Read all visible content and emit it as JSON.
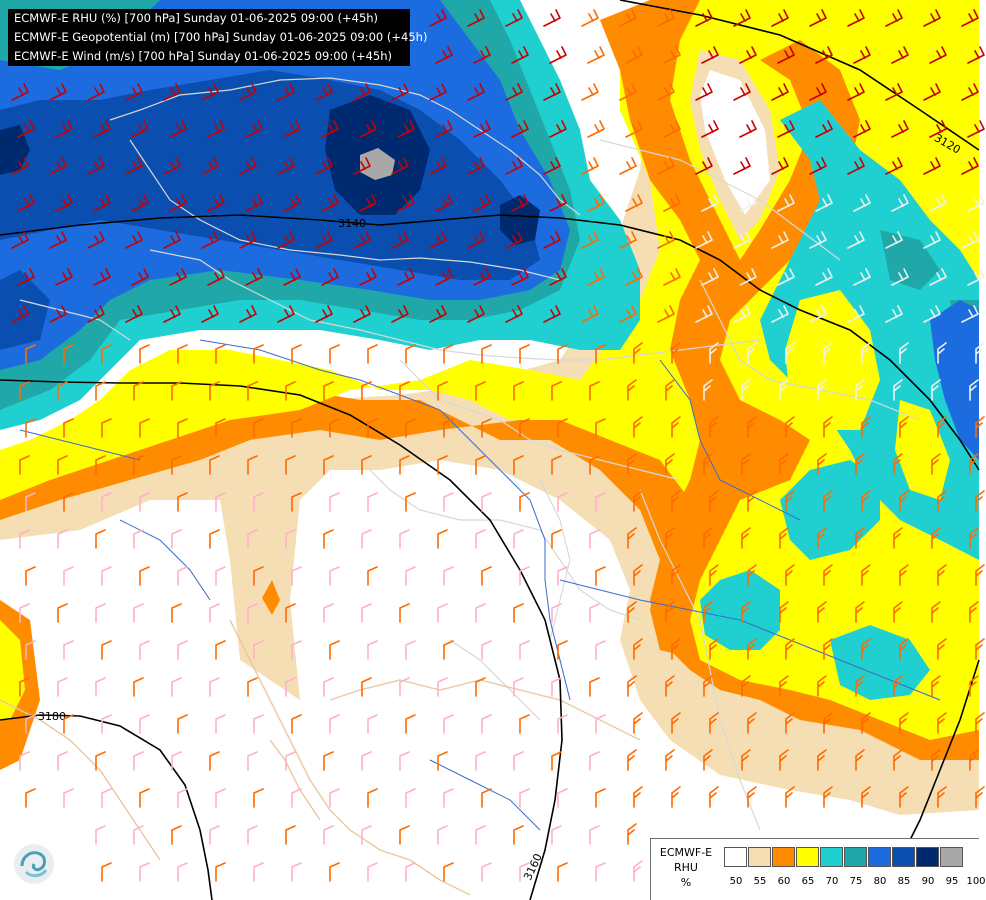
{
  "titles": [
    "ECMWF-E RHU (%) [700 hPa] Sunday 01-06-2025 09:00 (+45h)",
    "ECMWF-E Geopotential (m) [700 hPa] Sunday 01-06-2025 09:00 (+45h)",
    "ECMWF-E Wind (m/s) [700 hPa] Sunday 01-06-2025 09:00 (+45h)"
  ],
  "contours": {
    "c3120": "3120",
    "c3140": "3140",
    "c3160": "3160",
    "c3180": "3180"
  },
  "legend": {
    "model": "ECMWF-E",
    "variable": "RHU",
    "unit": "%",
    "ticks": [
      "50",
      "55",
      "60",
      "65",
      "70",
      "75",
      "80",
      "85",
      "90",
      "95",
      "100"
    ],
    "colors": [
      "#ffffff",
      "#f5deb3",
      "#ff8c00",
      "#ffff00",
      "#20d0d0",
      "#20a8a8",
      "#1c6ce0",
      "#0a4fb0",
      "#002a70",
      "#a8a8a8",
      "#5a5a5a"
    ]
  },
  "colors": {
    "rh_50": "#ffffff",
    "rh_55": "#f5deb3",
    "rh_60": "#ff8c00",
    "rh_65": "#ffff00",
    "rh_70": "#20d0d0",
    "rh_75": "#20a8a8",
    "rh_80": "#1c6ce0",
    "rh_85": "#0a4fb0",
    "rh_90": "#002a70",
    "rh_95": "#a8a8a8",
    "barb_red": "#c80000",
    "barb_orange": "#ff6a00",
    "barb_pink": "#ffb0c8",
    "barb_white": "#f0f0f0",
    "border": "#d8d8d8",
    "coast": "#e8c9a0",
    "river": "#3a6bc4",
    "isohypse": "#000000"
  },
  "icons": {
    "logo": "weather-logo-icon"
  }
}
